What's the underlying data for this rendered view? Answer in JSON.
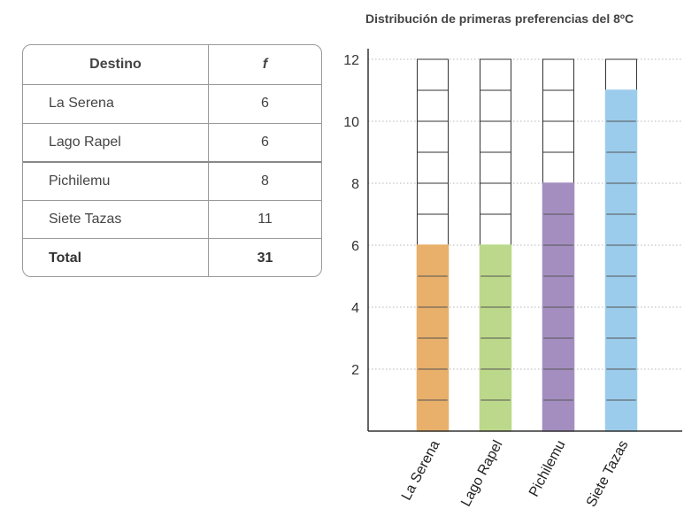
{
  "table": {
    "header": {
      "col1": "Destino",
      "col2": "f"
    },
    "rows": [
      {
        "destino": "La Serena",
        "f": "6"
      },
      {
        "destino": "Lago Rapel",
        "f": "6"
      },
      {
        "destino": "Pichilemu",
        "f": "8"
      },
      {
        "destino": "Siete Tazas",
        "f": "11"
      }
    ],
    "total": {
      "label": "Total",
      "value": "31"
    }
  },
  "chart_data": {
    "type": "bar",
    "title": "Distribución de primeras preferencias del 8ºC",
    "categories": [
      "La Serena",
      "Lago Rapel",
      "Pichilemu",
      "Siete Tazas"
    ],
    "values": [
      6,
      6,
      8,
      11
    ],
    "ylim": [
      0,
      12
    ],
    "yticks": [
      2,
      4,
      6,
      8,
      10,
      12
    ],
    "colors": [
      "#e8b06a",
      "#bcd88a",
      "#a48ec0",
      "#9ccceb"
    ],
    "empty_color": "#ffffff",
    "grid": true
  }
}
